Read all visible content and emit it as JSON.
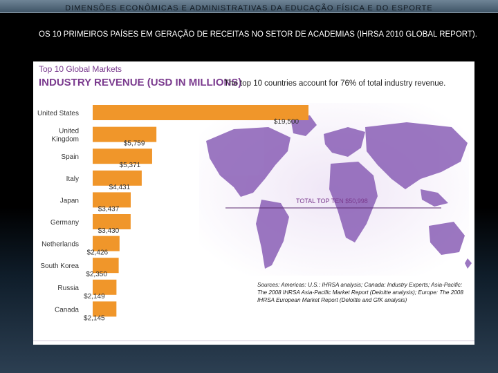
{
  "header": {
    "title": "DIMENSÕES ECONÔMICAS E ADMINISTRATIVAS DA EDUCAÇÃO FÍSICA E DO ESPORTE"
  },
  "slide": {
    "subtitle": "OS 10 PRIMEIROS PAÍSES EM GERAÇÃO DE RECEITAS NO SETOR DE ACADEMIAS (IHRSA 2010 GLOBAL REPORT)."
  },
  "chart_data": {
    "type": "bar",
    "orientation": "horizontal",
    "title_small": "Top 10 Global Markets",
    "title": "INDUSTRY REVENUE (USD IN MILLIONS)",
    "note": "The top 10 countries account for 76% of total industry revenue.",
    "categories": [
      [
        "United States"
      ],
      [
        "United",
        "Kingdom"
      ],
      [
        "Spain"
      ],
      [
        "Italy"
      ],
      [
        "Japan"
      ],
      [
        "Germany"
      ],
      [
        "Netherlands"
      ],
      [
        "South Korea"
      ],
      [
        "Russia"
      ],
      [
        "Canada"
      ]
    ],
    "values": [
      19500,
      5759,
      5371,
      4431,
      3437,
      3430,
      2426,
      2350,
      2149,
      2145
    ],
    "value_labels": [
      "$19,500",
      "$5,759",
      "$5,371",
      "$4,431",
      "$3,437",
      "$3,430",
      "$2,426",
      "$2,350",
      "$2,149",
      "$2,145"
    ],
    "total_label": "TOTAL TOP TEN $50,998",
    "sources": "Sources: Americas: U.S.: IHRSA analysis; Canada: Industry Experts; Asia-Pacific: The 2008 IHRSA Asia-Pacific Market Report (Deloitte analysis); Europe: The 2008 IHRSA European Market Report (Deloitte and GfK analysis)",
    "bar_color": "#f0962a",
    "map_color": "#8a5fb6",
    "title_color": "#7a3a8e"
  }
}
